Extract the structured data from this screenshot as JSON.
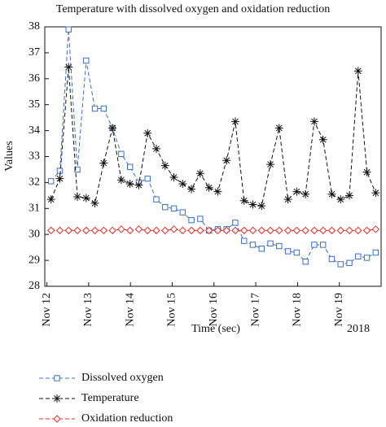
{
  "chart_data": {
    "type": "line",
    "title": "Temperature with dissolved oxygen and oxidation reduction",
    "x_label": "Time (sec)",
    "x_offset_label": "2018",
    "y_label": "Values",
    "xlim": [
      11.95,
      20.0
    ],
    "xticks": [
      {
        "value": 12,
        "label": "Nov 12"
      },
      {
        "value": 13,
        "label": "Nov 13"
      },
      {
        "value": 14,
        "label": "Nov 14"
      },
      {
        "value": 15,
        "label": "Nov 15"
      },
      {
        "value": 16,
        "label": "Nov 16"
      },
      {
        "value": 17,
        "label": "Nov 17"
      },
      {
        "value": 18,
        "label": "Nov 18"
      },
      {
        "value": 19,
        "label": "Nov 19"
      }
    ],
    "ylim": [
      28,
      38
    ],
    "yticks": [
      28,
      29,
      30,
      31,
      32,
      33,
      34,
      35,
      36,
      37,
      38
    ],
    "x": [
      12.1,
      12.31,
      12.52,
      12.73,
      12.94,
      13.15,
      13.36,
      13.57,
      13.78,
      13.99,
      14.2,
      14.41,
      14.62,
      14.83,
      15.04,
      15.25,
      15.46,
      15.67,
      15.88,
      16.09,
      16.3,
      16.51,
      16.72,
      16.93,
      17.14,
      17.35,
      17.56,
      17.77,
      17.98,
      18.19,
      18.4,
      18.61,
      18.82,
      19.03,
      19.24,
      19.45,
      19.66,
      19.87
    ],
    "series": [
      {
        "name": "Dissolved oxygen",
        "color": "#3a6fc4",
        "marker": "square",
        "values": [
          32.05,
          32.45,
          37.9,
          32.5,
          36.7,
          34.85,
          34.85,
          34.1,
          33.1,
          32.6,
          32.0,
          32.15,
          31.35,
          31.05,
          31.0,
          30.85,
          30.55,
          30.6,
          30.15,
          30.2,
          30.2,
          30.45,
          29.75,
          29.6,
          29.45,
          29.65,
          29.55,
          29.35,
          29.3,
          28.95,
          29.6,
          29.6,
          29.05,
          28.85,
          28.9,
          29.15,
          29.1,
          29.3
        ]
      },
      {
        "name": "Temperature",
        "color": "#111111",
        "marker": "asterisk",
        "values": [
          31.35,
          32.15,
          36.45,
          31.45,
          31.4,
          31.2,
          32.75,
          34.1,
          32.1,
          31.95,
          31.9,
          33.9,
          33.3,
          32.65,
          32.2,
          31.95,
          31.75,
          32.35,
          31.8,
          31.65,
          32.85,
          34.35,
          31.3,
          31.15,
          31.1,
          32.7,
          34.1,
          31.35,
          31.65,
          31.55,
          34.35,
          33.65,
          31.55,
          31.35,
          31.5,
          36.3,
          32.4,
          31.6
        ]
      },
      {
        "name": "Oxidation reduction",
        "color": "#e0312b",
        "marker": "diamond",
        "values": [
          30.15,
          30.15,
          30.15,
          30.15,
          30.15,
          30.15,
          30.15,
          30.15,
          30.2,
          30.15,
          30.2,
          30.15,
          30.15,
          30.15,
          30.2,
          30.15,
          30.15,
          30.15,
          30.15,
          30.15,
          30.15,
          30.15,
          30.15,
          30.15,
          30.15,
          30.15,
          30.15,
          30.15,
          30.15,
          30.15,
          30.15,
          30.15,
          30.15,
          30.15,
          30.15,
          30.15,
          30.15,
          30.2
        ]
      }
    ],
    "line_style": "dashed",
    "grid": false
  }
}
